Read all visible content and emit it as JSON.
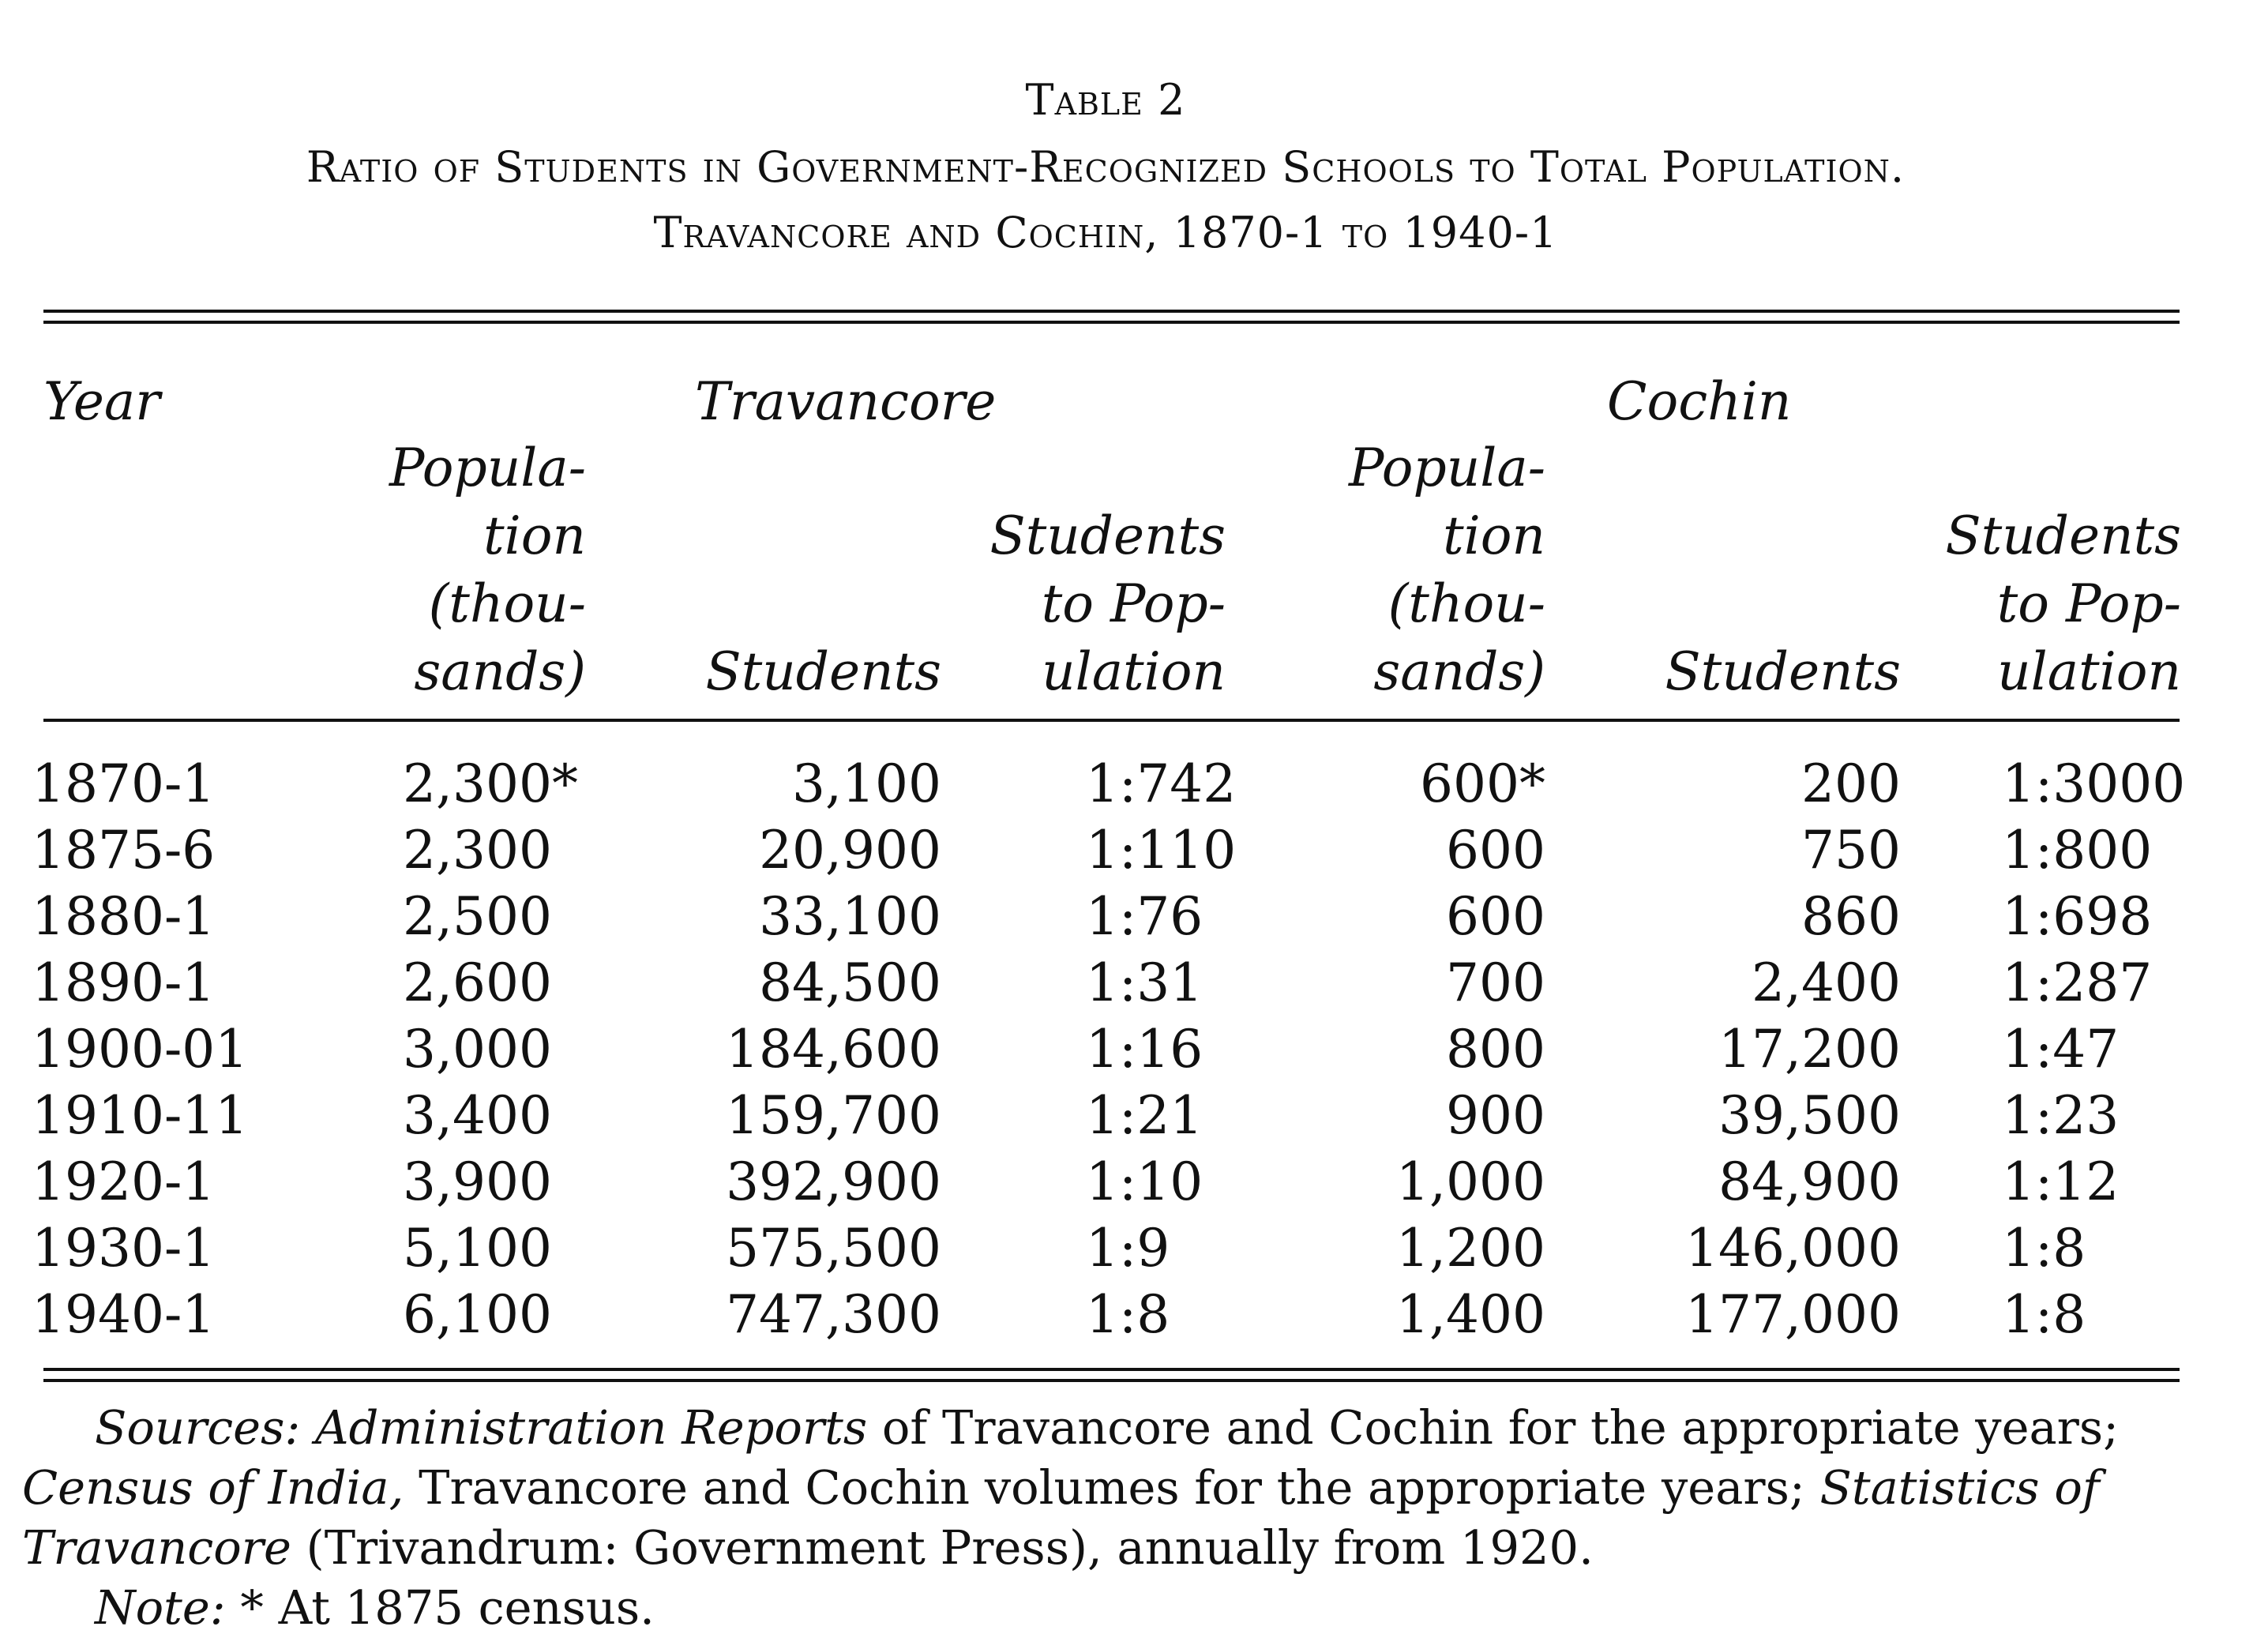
{
  "table": {
    "label": "Table 2",
    "title_line1": "Ratio of Students in Government-Recognized Schools to Total Population.",
    "title_line2": "Travancore and Cochin, 1870-1 to 1940-1",
    "headers": {
      "year": "Year",
      "group_travancore": "Travancore",
      "group_cochin": "Cochin",
      "trav_population": [
        "Popula-",
        "tion",
        "(thou-",
        "sands)"
      ],
      "trav_students": "Students",
      "trav_ratio": [
        "Students",
        "to Pop-",
        "ulation"
      ],
      "coch_population": [
        "Popula-",
        "tion",
        "(thou-",
        "sands)"
      ],
      "coch_students": "Students",
      "coch_ratio": [
        "Students",
        "to Pop-",
        "ulation"
      ]
    },
    "rows": [
      {
        "year": "1870-1",
        "trav_pop": "2,300*",
        "trav_students": "3,100",
        "trav_ratio": "1:742",
        "coch_pop": "600*",
        "coch_students": "200",
        "coch_ratio": "1:3000"
      },
      {
        "year": "1875-6",
        "trav_pop": "2,300",
        "trav_students": "20,900",
        "trav_ratio": "1:110",
        "coch_pop": "600",
        "coch_students": "750",
        "coch_ratio": "1:800"
      },
      {
        "year": "1880-1",
        "trav_pop": "2,500",
        "trav_students": "33,100",
        "trav_ratio": "1:76",
        "coch_pop": "600",
        "coch_students": "860",
        "coch_ratio": "1:698"
      },
      {
        "year": "1890-1",
        "trav_pop": "2,600",
        "trav_students": "84,500",
        "trav_ratio": "1:31",
        "coch_pop": "700",
        "coch_students": "2,400",
        "coch_ratio": "1:287"
      },
      {
        "year": "1900-01",
        "trav_pop": "3,000",
        "trav_students": "184,600",
        "trav_ratio": "1:16",
        "coch_pop": "800",
        "coch_students": "17,200",
        "coch_ratio": "1:47"
      },
      {
        "year": "1910-11",
        "trav_pop": "3,400",
        "trav_students": "159,700",
        "trav_ratio": "1:21",
        "coch_pop": "900",
        "coch_students": "39,500",
        "coch_ratio": "1:23"
      },
      {
        "year": "1920-1",
        "trav_pop": "3,900",
        "trav_students": "392,900",
        "trav_ratio": "1:10",
        "coch_pop": "1,000",
        "coch_students": "84,900",
        "coch_ratio": "1:12"
      },
      {
        "year": "1930-1",
        "trav_pop": "5,100",
        "trav_students": "575,500",
        "trav_ratio": "1:9",
        "coch_pop": "1,200",
        "coch_students": "146,000",
        "coch_ratio": "1:8"
      },
      {
        "year": "1940-1",
        "trav_pop": "6,100",
        "trav_students": "747,300",
        "trav_ratio": "1:8",
        "coch_pop": "1,400",
        "coch_students": "177,000",
        "coch_ratio": "1:8"
      }
    ]
  },
  "footnotes": {
    "sources_label": "Sources:",
    "sources_line1_ital": "Administration Reports",
    "sources_line1_rest": " of Travancore and Cochin for the appropriate years;",
    "sources_line2_ital": "Census of India,",
    "sources_line2_mid": " Travancore and Cochin volumes for the appropriate years; ",
    "sources_line2_ital2": "Statistics of",
    "sources_line3_ital": "Travancore",
    "sources_line3_rest": " (Trivandrum: Government Press), annually from 1920.",
    "note_label": "Note:",
    "note_text": " * At 1875 census."
  }
}
